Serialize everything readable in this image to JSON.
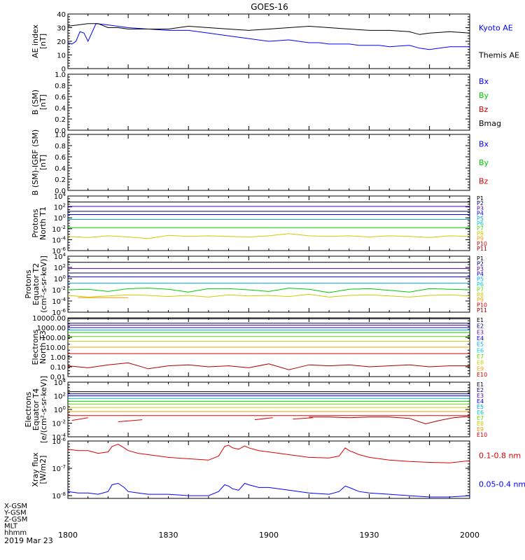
{
  "title": "GOES-16",
  "colors": {
    "black": "#000000",
    "blue": "#0000ff",
    "green": "#00cc00",
    "red": "#dd0000",
    "navy": "#000080",
    "purple": "#5500aa",
    "cyan": "#00aaee",
    "teal": "#00cccc",
    "lime": "#66dd00",
    "yellow": "#cccc00",
    "orange": "#ff9900",
    "darkred": "#aa0000"
  },
  "x_axis": {
    "tick_labels": [
      "1800",
      "1830",
      "1900",
      "1930",
      "2000"
    ],
    "coord_rows": [
      "X-GSM",
      "Y-GSM",
      "Z-GSM",
      "MLT",
      "hhmm"
    ],
    "date": "2019 Mar 23"
  },
  "chart_data": [
    {
      "type": "line",
      "ylabel": [
        "AE index",
        "[nT]"
      ],
      "ylim": [
        0,
        40
      ],
      "tick_labels": [
        "0",
        "10",
        "20",
        "30",
        "40"
      ],
      "legend": [
        "Kyoto AE",
        "Themis AE"
      ],
      "series": [
        {
          "name": "Kyoto AE",
          "color": "blue",
          "x": [
            0,
            2,
            4,
            6,
            8,
            10,
            14,
            20,
            30,
            40,
            50,
            60,
            70,
            80,
            90,
            100,
            110,
            115,
            120,
            125,
            130,
            135,
            140,
            145,
            150,
            155,
            160,
            170,
            175,
            180,
            185,
            190,
            195,
            200
          ],
          "y": [
            19,
            18,
            20,
            27,
            26,
            20,
            33,
            32,
            30,
            29,
            28,
            28,
            26,
            24,
            22,
            20,
            21,
            20,
            19,
            19,
            18,
            18,
            18,
            17,
            17,
            17,
            16,
            17,
            15,
            14,
            15,
            16,
            16,
            16
          ]
        },
        {
          "name": "Themis AE",
          "color": "black",
          "x": [
            0,
            5,
            10,
            15,
            20,
            25,
            30,
            40,
            50,
            55,
            60,
            70,
            80,
            90,
            100,
            110,
            120,
            130,
            140,
            150,
            160,
            170,
            175,
            180,
            190,
            200
          ],
          "y": [
            31,
            32,
            33,
            33,
            30,
            30,
            29,
            29,
            29,
            30,
            31,
            30,
            29,
            28,
            29,
            30,
            31,
            30,
            29,
            28,
            28,
            27,
            25,
            26,
            27,
            26
          ]
        }
      ]
    },
    {
      "type": "line",
      "ylabel": [
        "B (SM)",
        "[nT]"
      ],
      "ylim": [
        0,
        1
      ],
      "tick_labels": [
        "0.0",
        "0.2",
        "0.4",
        "0.6",
        "0.8",
        "1.0"
      ],
      "legend": [
        "Bx",
        "By",
        "Bz",
        "Bmag"
      ],
      "legend_colors": [
        "blue",
        "green",
        "red",
        "black"
      ],
      "series": []
    },
    {
      "type": "line",
      "ylabel": [
        "B (SM)-IGRF (SM)",
        "[nT]"
      ],
      "ylim": [
        0,
        1
      ],
      "tick_labels": [
        "0.0",
        "0.2",
        "0.4",
        "0.6",
        "0.8",
        "1.0"
      ],
      "legend": [
        "Bx",
        "By",
        "Bz"
      ],
      "legend_colors": [
        "blue",
        "green",
        "red"
      ],
      "series": []
    },
    {
      "type": "line",
      "log": true,
      "ylabel": [
        "Protons",
        "North T1"
      ],
      "ylim": [
        -6,
        4
      ],
      "tick_labels": [
        "10-6",
        "10-4",
        "10-2",
        "100",
        "102",
        "104"
      ],
      "tick_exps": [
        -6,
        -4,
        -2,
        0,
        2,
        4
      ],
      "legend": [
        "P1",
        "P2",
        "P3",
        "P4",
        "P5",
        "P6",
        "P7",
        "P8",
        "P9",
        "P10",
        "P11"
      ],
      "legend_colors": [
        "black",
        "navy",
        "purple",
        "blue",
        "cyan",
        "teal",
        "lime",
        "yellow",
        "orange",
        "red",
        "darkred"
      ],
      "series": [
        {
          "color": "black",
          "y": 2.9
        },
        {
          "color": "purple",
          "y": 2.1
        },
        {
          "color": "navy",
          "y": 1.2
        },
        {
          "color": "blue",
          "y": 0.6
        },
        {
          "color": "cyan",
          "y": -0.3
        },
        {
          "color": "green",
          "y": -1.8
        },
        {
          "color": "yellow",
          "x": [
            0,
            10,
            20,
            30,
            40,
            50,
            60,
            70,
            80,
            90,
            100,
            110,
            120,
            130,
            140,
            150,
            160,
            170,
            180,
            190,
            200
          ],
          "y": [
            -3.4,
            -3.6,
            -3.3,
            -3.5,
            -3.8,
            -3.2,
            -3.4,
            -3.3,
            -3.4,
            -3.5,
            -3.3,
            -2.9,
            -3.3,
            -3.4,
            -3.3,
            -3.5,
            -3.3,
            -3.4,
            -3.6,
            -3.3,
            -3.4
          ]
        }
      ]
    },
    {
      "type": "line",
      "log": true,
      "ylabel": [
        "Protons",
        "Equator T2",
        "(cm²-s-sr-keV)]"
      ],
      "ylim": [
        -6,
        4
      ],
      "tick_labels": [
        "10-6",
        "10-4",
        "10-2",
        "100",
        "102",
        "104"
      ],
      "tick_exps": [
        -6,
        -4,
        -2,
        0,
        2,
        4
      ],
      "legend": [
        "P1",
        "P2",
        "P3",
        "P4",
        "P5",
        "P6",
        "P7",
        "P8",
        "P9",
        "P10",
        "P11"
      ],
      "legend_colors": [
        "black",
        "navy",
        "purple",
        "blue",
        "cyan",
        "teal",
        "lime",
        "yellow",
        "orange",
        "red",
        "darkred"
      ],
      "series": [
        {
          "color": "black",
          "y": 2.9
        },
        {
          "color": "purple",
          "y": 1.8
        },
        {
          "color": "navy",
          "y": 1.0
        },
        {
          "color": "blue",
          "y": 0.3
        },
        {
          "color": "cyan",
          "y": -0.8
        },
        {
          "color": "green",
          "x": [
            0,
            10,
            20,
            30,
            40,
            50,
            60,
            70,
            80,
            90,
            100,
            110,
            120,
            130,
            140,
            150,
            160,
            170,
            180,
            190,
            200
          ],
          "y": [
            -2.0,
            -1.9,
            -2.3,
            -1.8,
            -1.7,
            -1.9,
            -2.4,
            -1.8,
            -1.8,
            -2.0,
            -2.3,
            -1.7,
            -1.9,
            -2.5,
            -1.9,
            -1.8,
            -2.1,
            -2.4,
            -1.8,
            -1.9,
            -2.0
          ]
        },
        {
          "color": "yellow",
          "x": [
            0,
            10,
            20,
            30,
            40,
            50,
            60,
            70,
            80,
            90,
            100,
            110,
            120,
            130,
            140,
            150,
            160,
            170,
            180,
            190,
            200
          ],
          "y": [
            -3.0,
            -3.3,
            -3.1,
            -2.9,
            -3.0,
            -3.2,
            -3.0,
            -3.3,
            -2.9,
            -3.1,
            -3.0,
            -3.2,
            -2.8,
            -3.3,
            -3.0,
            -2.9,
            -3.1,
            -3.3,
            -3.0,
            -2.9,
            -3.1
          ]
        },
        {
          "color": "orange",
          "x": [
            5,
            30
          ],
          "y": [
            -3.4,
            -3.4
          ]
        }
      ]
    },
    {
      "type": "line",
      "log": true,
      "ylabel": [
        "Electrons",
        "North T3"
      ],
      "ylim": [
        -2,
        4
      ],
      "tick_labels": [
        "0.01",
        "0.10",
        "1.00",
        "10.00",
        "100.00",
        "1000.00",
        "10000.00"
      ],
      "tick_exps": [
        -2,
        -1,
        0,
        1,
        2,
        3,
        4
      ],
      "legend": [
        "E1",
        "E2",
        "E3",
        "E4",
        "E5",
        "E6",
        "E7",
        "E8",
        "E9",
        "E10"
      ],
      "legend_colors": [
        "black",
        "navy",
        "purple",
        "blue",
        "cyan",
        "teal",
        "lime",
        "yellow",
        "orange",
        "red"
      ],
      "series": [
        {
          "color": "black",
          "y": 3.9
        },
        {
          "color": "navy",
          "y": 3.45
        },
        {
          "color": "purple",
          "y": 3.25
        },
        {
          "color": "blue",
          "y": 3.0
        },
        {
          "color": "cyan",
          "y": 2.75
        },
        {
          "color": "green",
          "y": 2.5
        },
        {
          "color": "lime",
          "y": 2.1
        },
        {
          "color": "yellow",
          "y": 1.6
        },
        {
          "color": "orange",
          "y": 1.0
        },
        {
          "color": "red",
          "y": 0.35
        },
        {
          "color": "darkred",
          "x": [
            0,
            10,
            20,
            30,
            40,
            50,
            60,
            70,
            80,
            90,
            100,
            110,
            120,
            130,
            140,
            150,
            160,
            170,
            180,
            190,
            200
          ],
          "y": [
            -0.9,
            -1.1,
            -0.8,
            -0.6,
            -1.2,
            -0.9,
            -0.8,
            -1.0,
            -0.9,
            -1.1,
            -0.7,
            -1.3,
            -0.8,
            -0.9,
            -0.8,
            -1.0,
            -0.9,
            -0.8,
            -1.0,
            -0.9,
            -0.9
          ]
        }
      ]
    },
    {
      "type": "line",
      "log": true,
      "ylabel": [
        "Electrons",
        "Equator T4",
        "[e/(cm²-s-sr-keV)]"
      ],
      "ylim": [
        -4,
        4
      ],
      "tick_labels": [
        "10-4",
        "10-2",
        "100",
        "102",
        "104"
      ],
      "tick_exps": [
        -4,
        -2,
        0,
        2,
        4
      ],
      "legend": [
        "E1",
        "E2",
        "E3",
        "E4",
        "E5",
        "E6",
        "E7",
        "E8",
        "E9",
        "E10"
      ],
      "legend_colors": [
        "black",
        "navy",
        "purple",
        "blue",
        "cyan",
        "teal",
        "lime",
        "yellow",
        "orange",
        "red"
      ],
      "series": [
        {
          "color": "black",
          "y": 2.6
        },
        {
          "color": "navy",
          "y": 2.3
        },
        {
          "color": "blue",
          "y": 2.0
        },
        {
          "color": "teal",
          "y": 1.6
        },
        {
          "color": "green",
          "y": 1.2
        },
        {
          "color": "lime",
          "y": 0.8
        },
        {
          "color": "yellow",
          "y": 0.3
        },
        {
          "color": "orange",
          "y": -0.3
        },
        {
          "color": "red",
          "y": -0.9
        },
        {
          "color": "darkred",
          "x": [
            120,
            125,
            130,
            140,
            150,
            160,
            170,
            178,
            185,
            192,
            200
          ],
          "y": [
            -1.1,
            -1.1,
            -1.1,
            -1.2,
            -1.1,
            -1.1,
            -1.3,
            -2.1,
            -1.6,
            -1.2,
            -1.0
          ]
        },
        {
          "color": "red",
          "x": [
            2,
            10
          ],
          "y": [
            -1.6,
            -1.2
          ]
        },
        {
          "color": "red",
          "x": [
            25,
            37
          ],
          "y": [
            -1.8,
            -1.5
          ]
        },
        {
          "color": "red",
          "x": [
            93,
            102
          ],
          "y": [
            -1.5,
            -1.2
          ]
        },
        {
          "color": "red",
          "x": [
            112,
            122
          ],
          "y": [
            -1.4,
            -1.2
          ]
        }
      ]
    },
    {
      "type": "line",
      "log": true,
      "ylabel": [
        "Xray flux",
        "[W/m2]"
      ],
      "ylim": [
        -8.1,
        -6
      ],
      "tick_labels": [
        "10-8",
        "10-7",
        "10-6"
      ],
      "tick_exps": [
        -8,
        -7,
        -6
      ],
      "legend": [
        "0.1-0.8 nm",
        "0.05-0.4 nm"
      ],
      "legend_colors": [
        "red",
        "blue"
      ],
      "series": [
        {
          "name": "0.1-0.8 nm",
          "color": "red",
          "x": [
            0,
            5,
            10,
            15,
            20,
            22,
            25,
            28,
            30,
            35,
            40,
            50,
            60,
            70,
            75,
            78,
            80,
            82,
            85,
            88,
            90,
            95,
            100,
            110,
            120,
            130,
            135,
            138,
            140,
            145,
            150,
            160,
            170,
            180,
            190,
            200
          ],
          "y": [
            -6.3,
            -6.35,
            -6.35,
            -6.45,
            -6.4,
            -6.2,
            -6.12,
            -6.25,
            -6.35,
            -6.45,
            -6.5,
            -6.6,
            -6.65,
            -6.7,
            -6.55,
            -6.2,
            -6.15,
            -6.25,
            -6.3,
            -6.18,
            -6.25,
            -6.35,
            -6.4,
            -6.5,
            -6.6,
            -6.62,
            -6.55,
            -6.25,
            -6.35,
            -6.5,
            -6.6,
            -6.7,
            -6.75,
            -6.78,
            -6.8,
            -6.72
          ]
        },
        {
          "name": "0.05-0.4 nm",
          "color": "blue",
          "x": [
            0,
            5,
            10,
            15,
            20,
            22,
            25,
            28,
            30,
            35,
            40,
            50,
            60,
            70,
            75,
            78,
            80,
            82,
            85,
            88,
            90,
            95,
            100,
            110,
            120,
            130,
            135,
            138,
            140,
            145,
            150,
            160,
            170,
            180,
            190,
            200
          ],
          "y": [
            -7.85,
            -7.9,
            -7.9,
            -7.95,
            -7.85,
            -7.6,
            -7.55,
            -7.7,
            -7.85,
            -7.9,
            -7.95,
            -7.95,
            -8.0,
            -8.0,
            -7.85,
            -7.6,
            -7.65,
            -7.75,
            -7.8,
            -7.55,
            -7.6,
            -7.7,
            -7.7,
            -7.8,
            -7.9,
            -7.95,
            -7.85,
            -7.65,
            -7.7,
            -7.85,
            -7.9,
            -7.95,
            -8.0,
            -8.05,
            -8.05,
            -8.0
          ]
        }
      ]
    }
  ]
}
